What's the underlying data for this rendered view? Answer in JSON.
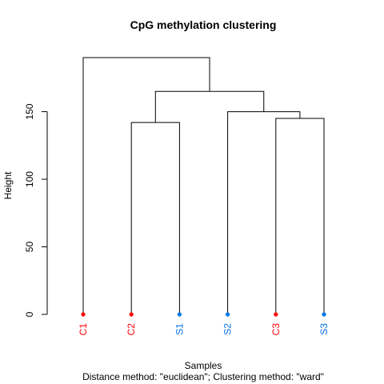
{
  "chart_data": {
    "type": "dendrogram",
    "title": "CpG methylation clustering",
    "xlabel": "Samples",
    "sub": "Distance method: \"euclidean\"; Clustering method: \"ward\"",
    "ylabel": "Height",
    "ylim": [
      0,
      190
    ],
    "yticks": [
      0,
      50,
      100,
      150
    ],
    "leaves": [
      {
        "label": "C1",
        "color": "#ff0000"
      },
      {
        "label": "C2",
        "color": "#ff0000"
      },
      {
        "label": "S1",
        "color": "#0073e6"
      },
      {
        "label": "S2",
        "color": "#0073e6"
      },
      {
        "label": "C3",
        "color": "#ff0000"
      },
      {
        "label": "S3",
        "color": "#0073e6"
      }
    ],
    "merges": [
      {
        "left": "C2",
        "right": "S1",
        "height": 142
      },
      {
        "left": "C3",
        "right": "S3",
        "height": 145
      },
      {
        "left": "S2",
        "right": "C3,S3",
        "height": 150
      },
      {
        "left": "C2,S1",
        "right": "S2,C3,S3",
        "height": 165
      },
      {
        "left": "C1",
        "right": "C2,S1,S2,C3,S3",
        "height": 190
      }
    ]
  }
}
